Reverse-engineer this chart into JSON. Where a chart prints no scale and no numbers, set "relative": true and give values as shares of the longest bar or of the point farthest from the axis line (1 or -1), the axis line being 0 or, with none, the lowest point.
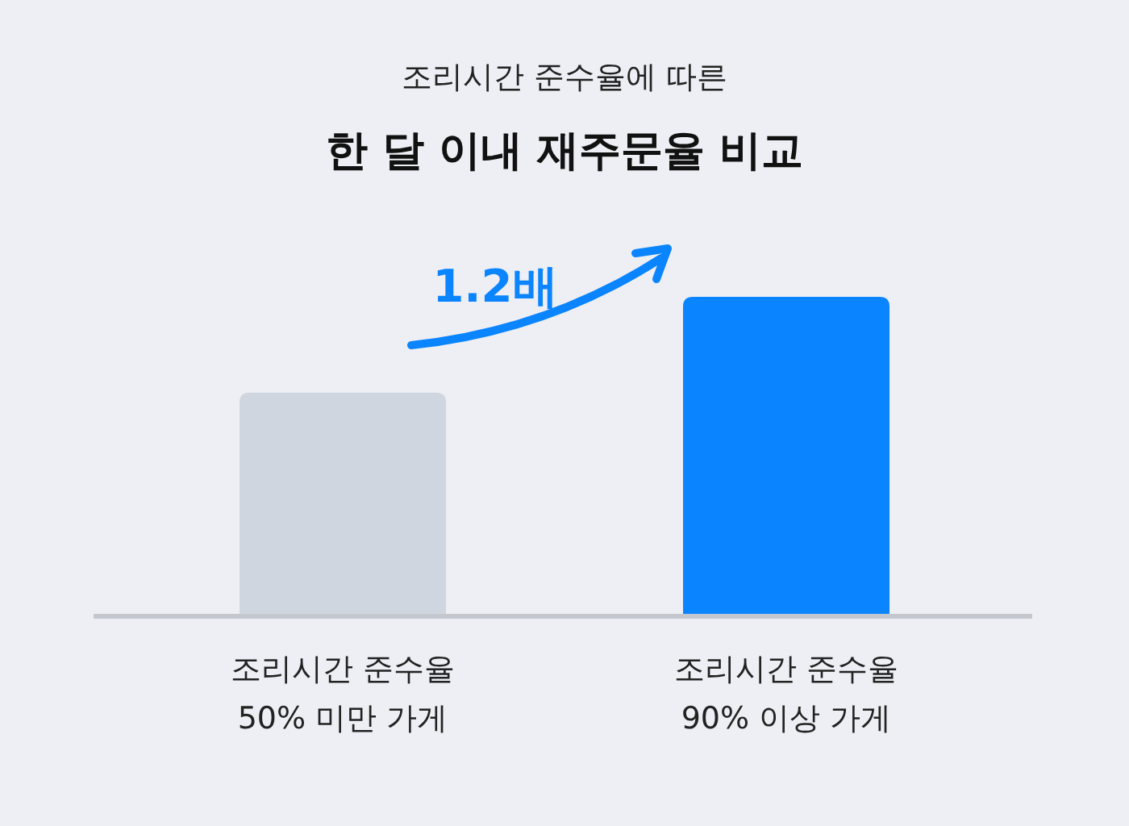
{
  "chart_data": {
    "type": "bar",
    "subtitle": "조리시간 준수율에 따른",
    "title": "한 달 이내 재주문율 비교",
    "categories": [
      "조리시간 준수율\n50% 미만 가게",
      "조리시간 준수율\n90% 이상 가게"
    ],
    "values": [
      0.7,
      1
    ],
    "colors": [
      "#d0d6e0",
      "#0a84ff"
    ],
    "relative": true,
    "annotations": [
      "1.2배"
    ]
  }
}
